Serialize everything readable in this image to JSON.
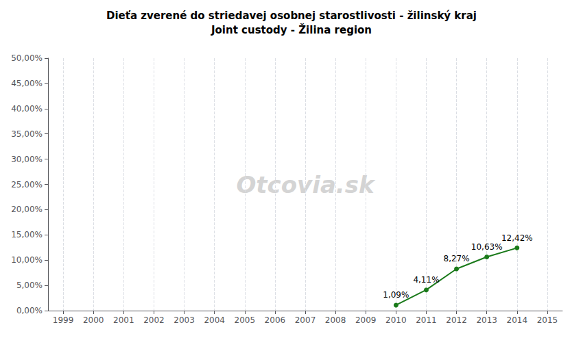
{
  "chart_data": {
    "type": "line",
    "title": "Dieťa zverené do striedavej osobnej starostlivosti - žilinský kraj",
    "subtitle": "Joint custody - Žilina region",
    "x": [
      2010,
      2011,
      2012,
      2013,
      2014
    ],
    "values": [
      1.09,
      4.11,
      8.27,
      10.63,
      12.42
    ],
    "value_labels": [
      "1,09%",
      "4,11%",
      "8,27%",
      "10,63%",
      "12,42%"
    ],
    "data_labels": true,
    "color": "#1a7a1a",
    "marker": "circle",
    "xlim": [
      1998.5,
      2015.5
    ],
    "xticks": [
      1999,
      2000,
      2001,
      2002,
      2003,
      2004,
      2005,
      2006,
      2007,
      2008,
      2009,
      2010,
      2011,
      2012,
      2013,
      2014,
      2015
    ],
    "ylim": [
      0,
      50
    ],
    "yticks": [
      {
        "value": 0,
        "label": "0,00%"
      },
      {
        "value": 5,
        "label": "5,00%"
      },
      {
        "value": 10,
        "label": "10,00%"
      },
      {
        "value": 15,
        "label": "15,00%"
      },
      {
        "value": 20,
        "label": "20,00%"
      },
      {
        "value": 25,
        "label": "25,00%"
      },
      {
        "value": 30,
        "label": "30,00%"
      },
      {
        "value": 35,
        "label": "35,00%"
      },
      {
        "value": 40,
        "label": "40,00%"
      },
      {
        "value": 45,
        "label": "45,00%"
      },
      {
        "value": 50,
        "label": "50,00%"
      }
    ],
    "grid": "x",
    "annotations": [
      {
        "text": "Otcovia.sk",
        "color": "#c8c8c8"
      }
    ]
  }
}
